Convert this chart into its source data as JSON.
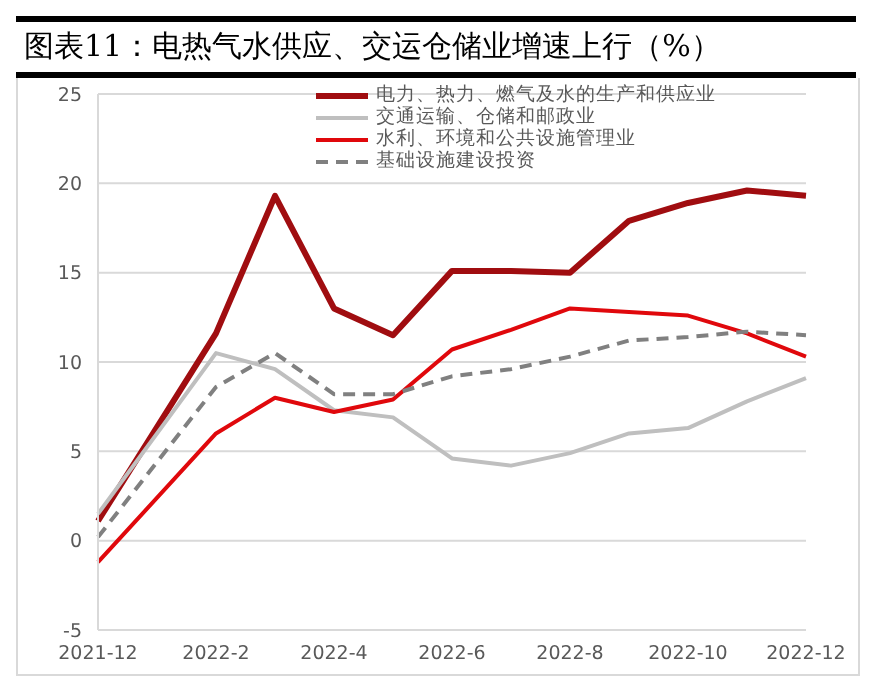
{
  "chart_data": {
    "type": "line",
    "title": "图表11：电热气水供应、交运仓储业增速上行（%）",
    "categories": [
      "2021-12",
      null,
      "2022-2",
      null,
      "2022-4",
      null,
      "2022-6",
      null,
      "2022-8",
      null,
      "2022-10",
      null,
      "2022-12"
    ],
    "series": [
      {
        "name": "电力、热力、燃气及水的生产和供应业",
        "color": "#a00d10",
        "values": [
          1.1,
          null,
          11.6,
          19.3,
          13.0,
          11.5,
          15.1,
          15.1,
          15.0,
          17.9,
          18.9,
          19.6,
          19.3
        ]
      },
      {
        "name": "交通运输、仓储和邮政业",
        "color": "#bfbfbf",
        "values": [
          1.5,
          null,
          10.5,
          9.6,
          7.3,
          6.9,
          4.6,
          4.2,
          4.9,
          6.0,
          6.3,
          7.8,
          9.1
        ]
      },
      {
        "name": "水利、环境和公共设施管理业",
        "color": "#e0080c",
        "values": [
          -1.2,
          null,
          6.0,
          8.0,
          7.2,
          7.9,
          10.7,
          11.8,
          13.0,
          12.8,
          12.6,
          11.6,
          10.3
        ]
      },
      {
        "name": "基础设施建设投资",
        "color": "#808080",
        "line_style": "dashed",
        "values": [
          0.2,
          null,
          8.6,
          10.5,
          8.2,
          8.2,
          9.2,
          9.6,
          10.3,
          11.2,
          11.4,
          11.7,
          11.5
        ]
      }
    ],
    "ylim": [
      -5,
      25
    ],
    "yticks": [
      -5,
      0,
      5,
      10,
      15,
      20,
      25
    ],
    "grid": "y",
    "legend": "top right",
    "marker": "none"
  }
}
